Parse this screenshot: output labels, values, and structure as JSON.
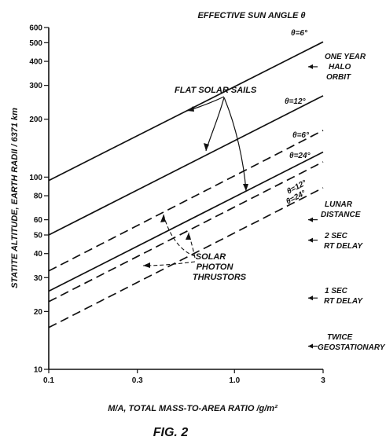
{
  "chart_data": {
    "type": "line",
    "title": "EFFECTIVE SUN ANGLE θ",
    "xlabel": "M/A, TOTAL MASS-TO-AREA RATIO /g/m²",
    "ylabel": "STATITE ALTITUDE, EARTH RADII / 6371 km",
    "xscale": "log",
    "yscale": "log",
    "xlim": [
      0.1,
      3
    ],
    "ylim": [
      10,
      600
    ],
    "x_ticks": [
      "0.1",
      "0.3",
      "1.0",
      "3"
    ],
    "y_ticks": [
      "10",
      "20",
      "30",
      "40",
      "50",
      "60",
      "80",
      "100",
      "200",
      "300",
      "400",
      "500",
      "600"
    ],
    "series": [
      {
        "name": "θ=6°",
        "group": "FLAT SOLAR SAILS",
        "style": "solid",
        "x": [
          0.1,
          3
        ],
        "y": [
          96,
          505
        ]
      },
      {
        "name": "θ=12°",
        "group": "FLAT SOLAR SAILS",
        "style": "solid",
        "x": [
          0.1,
          3
        ],
        "y": [
          50,
          265
        ]
      },
      {
        "name": "θ=24°",
        "group": "FLAT SOLAR SAILS",
        "style": "solid",
        "x": [
          0.1,
          3
        ],
        "y": [
          25.5,
          135
        ]
      },
      {
        "name": "θ=6°",
        "group": "SOLAR PHOTON THRUSTORS",
        "style": "dashed",
        "x": [
          0.1,
          3
        ],
        "y": [
          32.5,
          175
        ]
      },
      {
        "name": "θ=12°",
        "group": "SOLAR PHOTON THRUSTORS",
        "style": "dashed",
        "x": [
          0.1,
          3
        ],
        "y": [
          22.5,
          120
        ]
      },
      {
        "name": "θ=24°",
        "group": "SOLAR PHOTON THRUSTORS",
        "style": "dashed",
        "x": [
          0.1,
          3
        ],
        "y": [
          16.5,
          88
        ]
      }
    ],
    "reference_markers": [
      {
        "label": "ONE YEAR HALO ORBIT",
        "y": 375
      },
      {
        "label": "LUNAR DISTANCE",
        "y": 60
      },
      {
        "label": "2 SEC RT DELAY",
        "y": 47
      },
      {
        "label": "1 SEC RT DELAY",
        "y": 23.5
      },
      {
        "label": "TWICE GEOSTATIONARY",
        "y": 13.2
      }
    ],
    "annotations": {
      "flat_sails": "FLAT SOLAR SAILS",
      "thrustors": "SOLAR PHOTON THRUSTORS"
    },
    "grid": false,
    "legend": "none"
  },
  "figure_caption": "FIG. 2",
  "labels": {
    "t6_sail": "θ=6°",
    "t12_sail": "θ=12°",
    "t6_dash": "θ=6°",
    "t24_sail": "θ=24°",
    "t12_dash": "θ=12°",
    "t24_dash": "θ=24°",
    "ref_halo_1": "ONE YEAR",
    "ref_halo_2": "HALO",
    "ref_halo_3": "ORBIT",
    "ref_lunar_1": "LUNAR",
    "ref_lunar_2": "DISTANCE",
    "ref_2sec_1": "2 SEC",
    "ref_2sec_2": "RT DELAY",
    "ref_1sec_1": "1 SEC",
    "ref_1sec_2": "RT DELAY",
    "ref_geo_1": "TWICE",
    "ref_geo_2": "GEOSTATIONARY",
    "flat_sails": "FLAT SOLAR SAILS",
    "thr_1": "SOLAR",
    "thr_2": "PHOTON",
    "thr_3": "THRUSTORS"
  }
}
